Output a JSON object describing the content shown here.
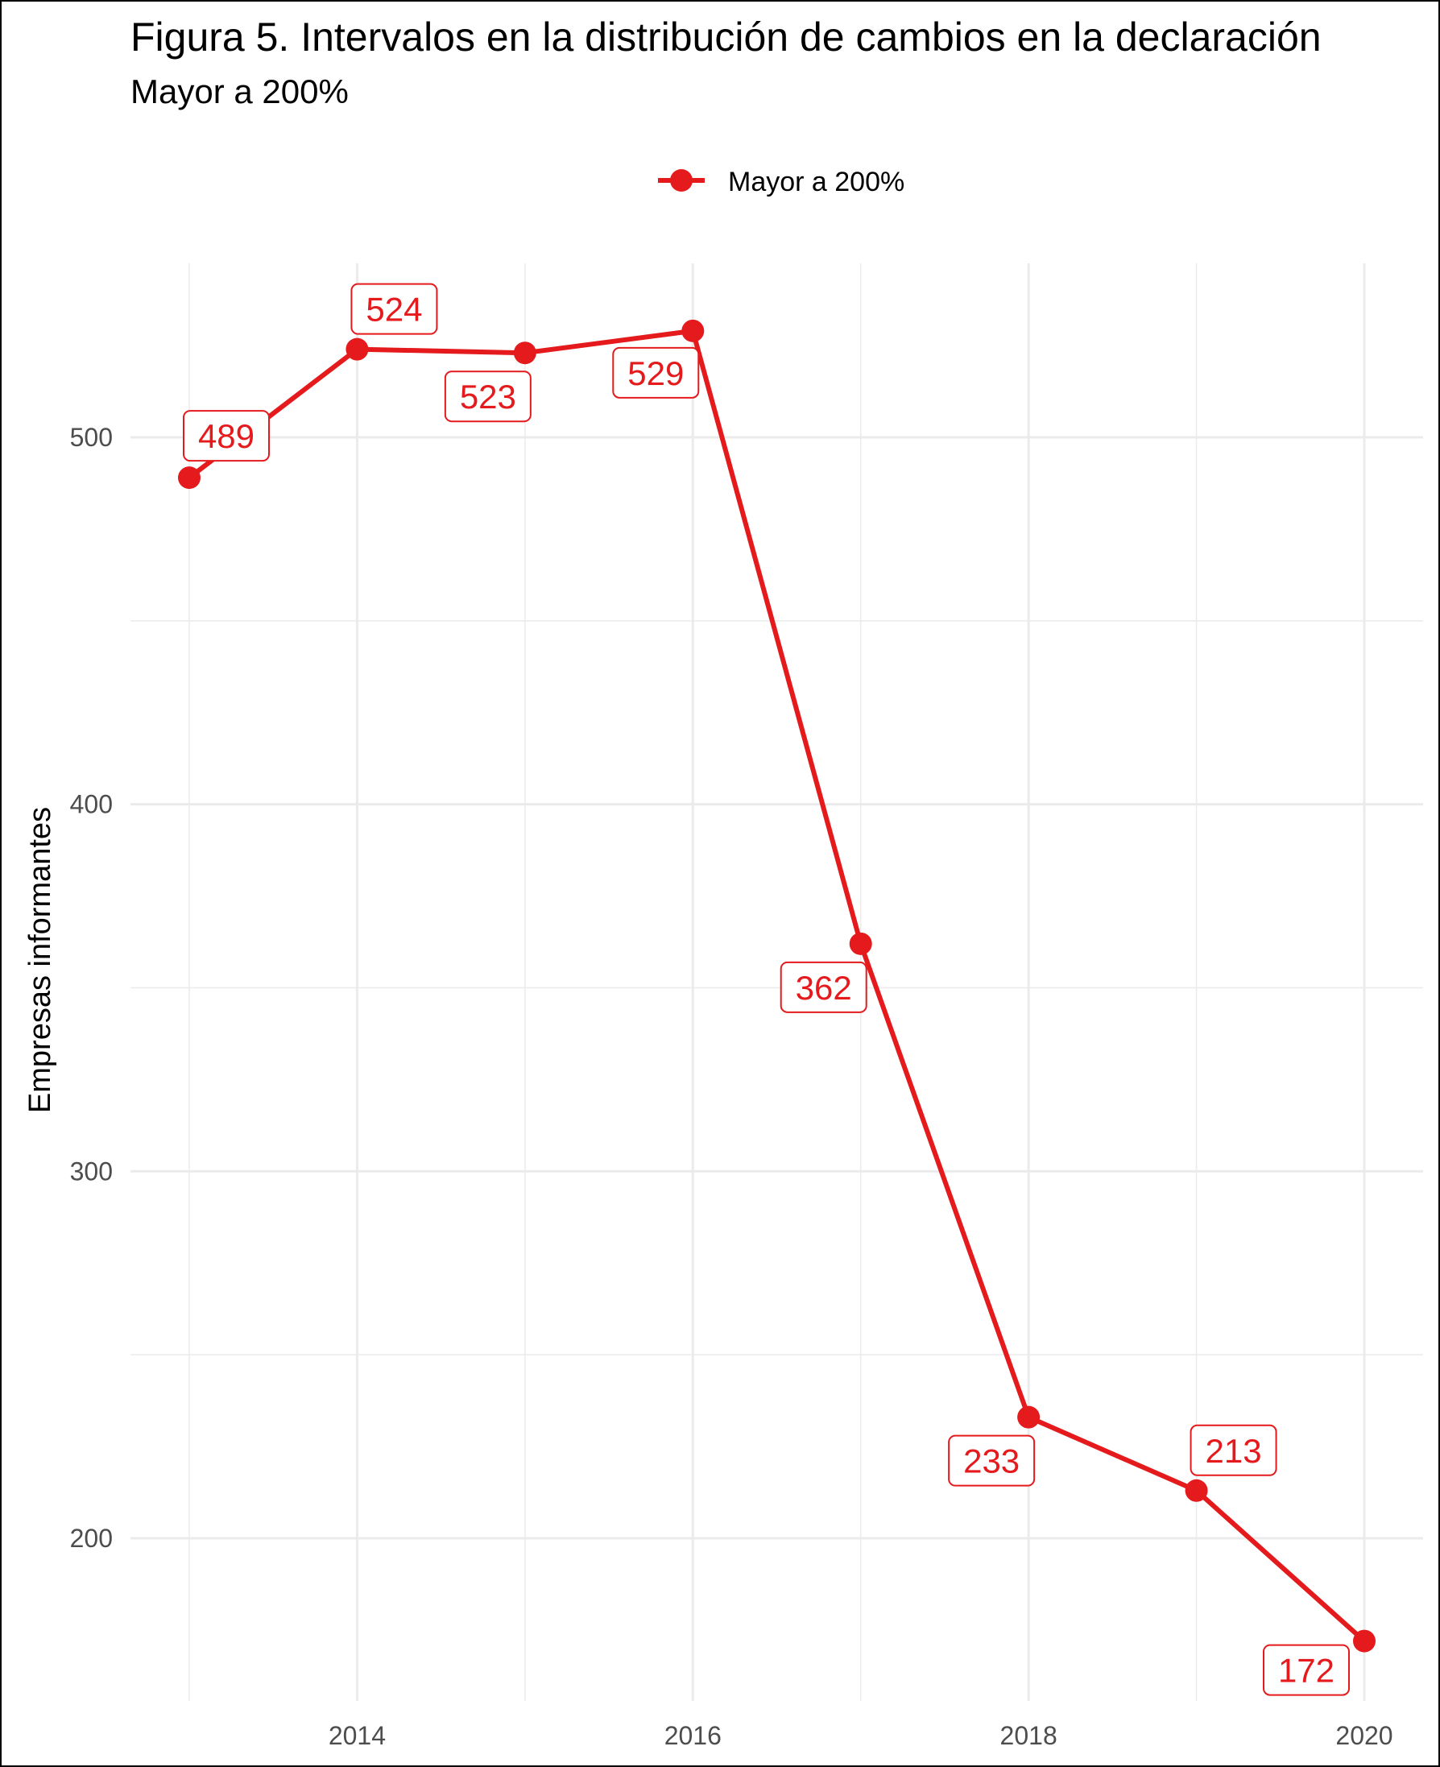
{
  "title": "Figura 5. Intervalos en la distribución de cambios en la declaración",
  "subtitle": "Mayor a 200%",
  "colors": {
    "series": "#e41a1c",
    "grid": "#ebebeb",
    "text": "#4d4d4d",
    "title": "#000000"
  },
  "chart_data": {
    "type": "line",
    "title": "Figura 5. Intervalos en la distribución de cambios en la declaración",
    "subtitle": "Mayor a 200%",
    "xlabel": "",
    "ylabel": "Empresas informantes",
    "x": [
      2013,
      2014,
      2015,
      2016,
      2017,
      2018,
      2019,
      2020
    ],
    "series": [
      {
        "name": "Mayor a 200%",
        "color": "#e41a1c",
        "values": [
          489,
          524,
          523,
          529,
          362,
          233,
          213,
          172
        ]
      }
    ],
    "xticks": [
      "2014",
      "2016",
      "2018",
      "2020"
    ],
    "yticks": [
      "200",
      "300",
      "400",
      "500"
    ],
    "xlim": [
      2012.9,
      2020.3
    ],
    "ylim": [
      155,
      576
    ],
    "grid": true,
    "legend": "top",
    "data_labels": [
      "489",
      "524",
      "523",
      "529",
      "362",
      "233",
      "213",
      "172"
    ]
  }
}
